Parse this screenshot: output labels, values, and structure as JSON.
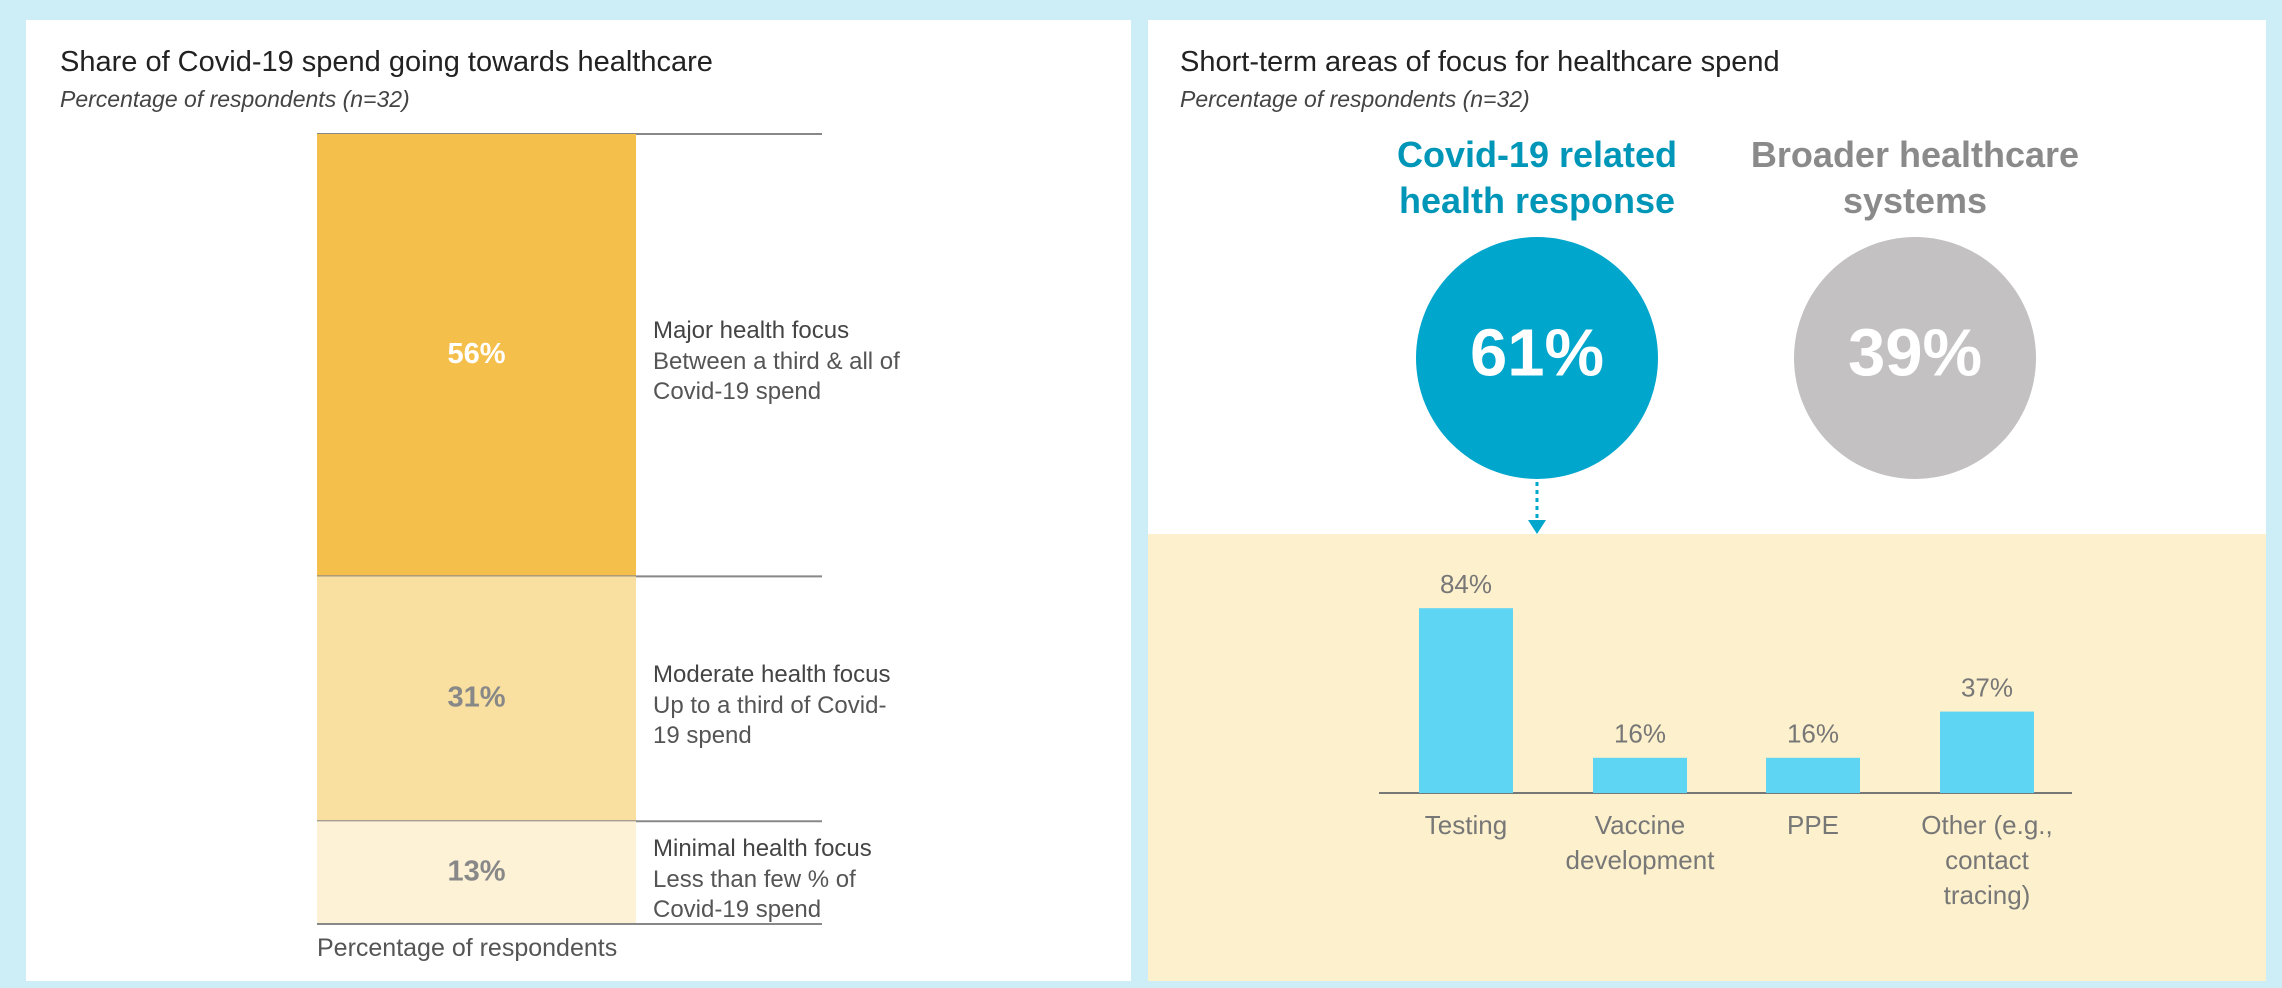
{
  "chart_data": [
    {
      "type": "stacked_bar",
      "title": "Share of Covid-19 spend going towards healthcare",
      "subtitle": "Percentage of respondents (n=32)",
      "xlabel": "Percentage of respondents",
      "series": [
        {
          "name": "Major health focus",
          "description": "Between a third & all of Covid-19 spend",
          "values": [
            56
          ],
          "value_labels": [
            "56%"
          ],
          "color": "#f5bf4b",
          "label_color": "#ffffff"
        },
        {
          "name": "Moderate health focus",
          "description": "Up to a third of Covid-19 spend",
          "values": [
            31
          ],
          "value_labels": [
            "31%"
          ],
          "color": "#f9e0a0",
          "label_color": "#888888"
        },
        {
          "name": "Minimal health focus",
          "description": "Less than few % of Covid-19 spend",
          "values": [
            13
          ],
          "value_labels": [
            "13%"
          ],
          "color": "#fdf2d6",
          "label_color": "#888888"
        }
      ]
    },
    {
      "type": "circles",
      "title": "Short-term areas of focus for healthcare spend",
      "subtitle": "Percentage of respondents (n=32)",
      "categories": [
        "Covid-19 related health response",
        "Broader healthcare systems"
      ],
      "values": [
        61,
        39
      ],
      "value_labels": [
        "61%",
        "39%"
      ],
      "colors": [
        "#00a6cc",
        "#c3c1c1"
      ],
      "label_colors": [
        "#0096b8",
        "#8a8a8a"
      ]
    },
    {
      "type": "bar",
      "categories": [
        "Testing",
        "Vaccine development",
        "PPE",
        "Other (e.g., contact tracing)"
      ],
      "values": [
        84,
        16,
        16,
        37
      ],
      "value_labels": [
        "84%",
        "16%",
        "16%",
        "37%"
      ],
      "color": "#5dd5f3"
    }
  ]
}
